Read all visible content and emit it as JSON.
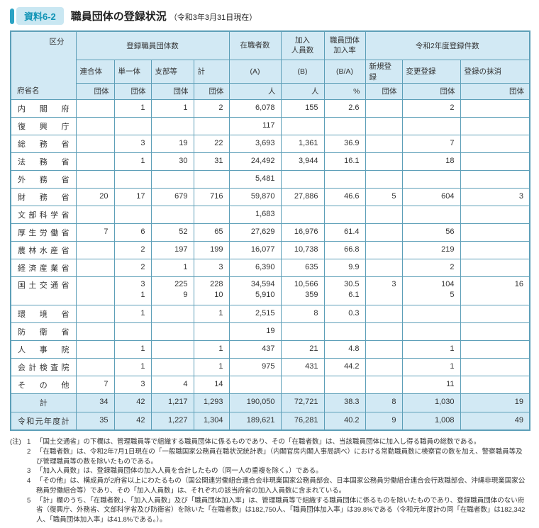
{
  "header": {
    "badge": "資料6-2",
    "title": "職員団体の登録状況",
    "date_note": "（令和3年3月31日現在）"
  },
  "table": {
    "header": {
      "kubun": "区分",
      "fushomei": "府省名",
      "group_registered": "登録職員団体数",
      "col_rengotai": "連合体",
      "col_tanitai": "単一体",
      "col_shibuto": "支部等",
      "col_kei": "計",
      "unit_dantai": "団体",
      "col_zaishokusha": "在職者数",
      "col_kanyujinin": "加入\n人員数",
      "col_kanyuritsu": "職員団体\n加入率",
      "sub_a": "(A)",
      "sub_b": "(B)",
      "sub_ba": "(B/A)",
      "unit_nin": "人",
      "unit_pct": "%",
      "group_r2": "令和2年度登録件数",
      "col_shinki": "新規登録",
      "col_henko": "変更登録",
      "col_massho": "登録の抹消"
    },
    "rows": [
      {
        "name": "内閣府",
        "cells": [
          "",
          "1",
          "1",
          "2",
          "6,078",
          "155",
          "2.6",
          "",
          "2",
          ""
        ],
        "type": "normal"
      },
      {
        "name": "復興庁",
        "cells": [
          "",
          "",
          "",
          "",
          "117",
          "",
          "",
          "",
          "",
          ""
        ],
        "type": "normal"
      },
      {
        "name": "総務省",
        "cells": [
          "",
          "3",
          "19",
          "22",
          "3,693",
          "1,361",
          "36.9",
          "",
          "7",
          ""
        ],
        "type": "normal"
      },
      {
        "name": "法務省",
        "cells": [
          "",
          "1",
          "30",
          "31",
          "24,492",
          "3,944",
          "16.1",
          "",
          "18",
          ""
        ],
        "type": "normal"
      },
      {
        "name": "外務省",
        "cells": [
          "",
          "",
          "",
          "",
          "5,481",
          "",
          "",
          "",
          "",
          ""
        ],
        "type": "normal"
      },
      {
        "name": "財務省",
        "cells": [
          "20",
          "17",
          "679",
          "716",
          "59,870",
          "27,886",
          "46.6",
          "5",
          "604",
          "3"
        ],
        "type": "normal"
      },
      {
        "name": "文部科学省",
        "cells": [
          "",
          "",
          "",
          "",
          "1,683",
          "",
          "",
          "",
          "",
          ""
        ],
        "type": "normal"
      },
      {
        "name": "厚生労働省",
        "cells": [
          "7",
          "6",
          "52",
          "65",
          "27,629",
          "16,976",
          "61.4",
          "",
          "56",
          ""
        ],
        "type": "normal"
      },
      {
        "name": "農林水産省",
        "cells": [
          "",
          "2",
          "197",
          "199",
          "16,077",
          "10,738",
          "66.8",
          "",
          "219",
          ""
        ],
        "type": "normal"
      },
      {
        "name": "経済産業省",
        "cells": [
          "",
          "2",
          "1",
          "3",
          "6,390",
          "635",
          "9.9",
          "",
          "2",
          ""
        ],
        "type": "normal"
      },
      {
        "name": "国土交通省",
        "cells": [
          "",
          "3\n1",
          "225\n9",
          "228\n10",
          "34,594\n5,910",
          "10,566\n359",
          "30.5\n6.1",
          "3",
          "104\n5",
          "16"
        ],
        "type": "tall"
      },
      {
        "name": "環境省",
        "cells": [
          "",
          "1",
          "",
          "1",
          "2,515",
          "8",
          "0.3",
          "",
          "",
          ""
        ],
        "type": "normal"
      },
      {
        "name": "防衛省",
        "cells": [
          "",
          "",
          "",
          "",
          "19",
          "",
          "",
          "",
          "",
          ""
        ],
        "type": "normal"
      },
      {
        "name": "人事院",
        "cells": [
          "",
          "1",
          "",
          "1",
          "437",
          "21",
          "4.8",
          "",
          "1",
          ""
        ],
        "type": "normal"
      },
      {
        "name": "会計検査院",
        "cells": [
          "",
          "1",
          "",
          "1",
          "975",
          "431",
          "44.2",
          "",
          "1",
          ""
        ],
        "type": "normal"
      },
      {
        "name": "その他",
        "cells": [
          "7",
          "3",
          "4",
          "14",
          "",
          "",
          "",
          "",
          "11",
          ""
        ],
        "type": "normal"
      },
      {
        "name": "計",
        "cells": [
          "34",
          "42",
          "1,217",
          "1,293",
          "190,050",
          "72,721",
          "38.3",
          "8",
          "1,030",
          "19"
        ],
        "type": "total",
        "name_center": true
      },
      {
        "name": "令和元年度計",
        "cells": [
          "35",
          "42",
          "1,227",
          "1,304",
          "189,621",
          "76,281",
          "40.2",
          "9",
          "1,008",
          "49"
        ],
        "type": "total"
      }
    ]
  },
  "notes": {
    "label": "(注)",
    "items": [
      {
        "num": "1",
        "text": "「国土交通省」の下欄は、管理職員等で組織する職員団体に係るものであり、その「在職者数」は、当該職員団体に加入し得る職員の総数である。"
      },
      {
        "num": "2",
        "text": "「在職者数」は、令和2年7月1日現在の「一般職国家公務員在職状況統計表」（内閣官房内閣人事局調べ）における常勤職員数に検察官の数を加え、警察職員等及び管理職員等の数を除いたものである。"
      },
      {
        "num": "3",
        "text": "「加入人員数」は、登録職員団体の加入人員を合計したもの（同一人の重複を除く。）である。"
      },
      {
        "num": "4",
        "text": "「その他」は、構成員が2府省以上にわたるもの（国公関連労働組合連合会非現業国家公務員部会、日本国家公務員労働組合連合会行政職部会、沖縄非現業国家公務員労働組合等）であり、その「加入人員数」は、それぞれの該当府省の加入人員数に含まれている。"
      },
      {
        "num": "5",
        "text": "「計」欄のうち、「在職者数」、「加入人員数」及び「職員団体加入率」は、管理職員等で組織する職員団体に係るものを除いたものであり、登録職員団体のない府省（復興庁、外務省、文部科学省及び防衛省）を除いた「在職者数」は182,750人、「職員団体加入率」は39.8%である（令和元年度計の同「在職者数」は182,342人、「職員団体加入率」は41.8%である。）。"
      }
    ]
  }
}
